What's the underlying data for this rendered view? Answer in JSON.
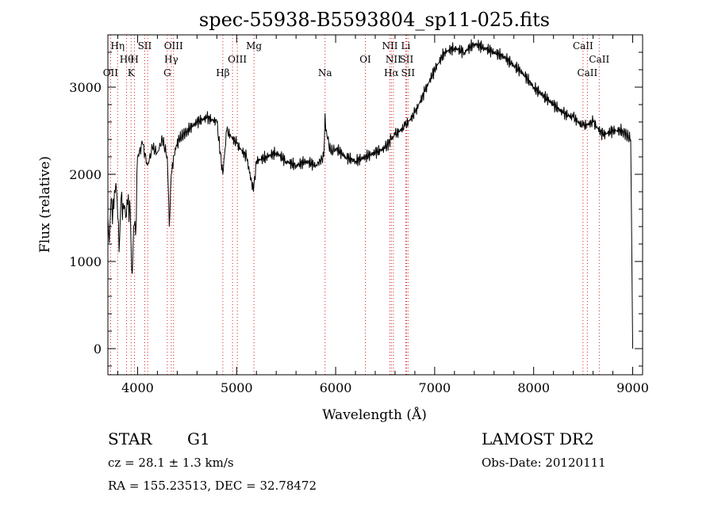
{
  "chart_data": {
    "type": "line",
    "title": "spec-55938-B5593804_sp11-025.fits",
    "xlabel": "Wavelength (Å)",
    "ylabel": "Flux (relative)",
    "xlim": [
      3700,
      9100
    ],
    "ylim": [
      -300,
      3600
    ],
    "xticks": [
      4000,
      5000,
      6000,
      7000,
      8000,
      9000
    ],
    "yticks": [
      0,
      1000,
      2000,
      3000
    ],
    "grid": false,
    "series": [
      {
        "color": "#000000",
        "x": [
          3700,
          3720,
          3740,
          3760,
          3780,
          3800,
          3820,
          3840,
          3860,
          3880,
          3900,
          3920,
          3940,
          3960,
          3980,
          4000,
          4050,
          4100,
          4150,
          4200,
          4250,
          4300,
          4320,
          4340,
          4380,
          4420,
          4500,
          4600,
          4700,
          4800,
          4860,
          4900,
          5000,
          5100,
          5170,
          5200,
          5300,
          5400,
          5500,
          5600,
          5700,
          5800,
          5880,
          5893,
          5900,
          5920,
          5950,
          6000,
          6100,
          6200,
          6300,
          6400,
          6500,
          6560,
          6600,
          6700,
          6800,
          6900,
          7000,
          7100,
          7200,
          7300,
          7400,
          7500,
          7600,
          7700,
          7800,
          7900,
          8000,
          8100,
          8200,
          8300,
          8400,
          8500,
          8600,
          8700,
          8800,
          8900,
          8980,
          9000
        ],
        "y": [
          1500,
          1400,
          1700,
          1600,
          1900,
          1500,
          1300,
          1800,
          1600,
          1500,
          1650,
          1700,
          900,
          1400,
          1300,
          2200,
          2350,
          2100,
          2300,
          2250,
          2400,
          2200,
          1400,
          2000,
          2300,
          2400,
          2500,
          2600,
          2650,
          2600,
          2000,
          2500,
          2350,
          2200,
          1800,
          2150,
          2200,
          2250,
          2150,
          2100,
          2150,
          2100,
          2200,
          2700,
          2500,
          2400,
          2250,
          2300,
          2200,
          2150,
          2200,
          2250,
          2300,
          2400,
          2450,
          2550,
          2700,
          2950,
          3200,
          3400,
          3450,
          3400,
          3500,
          3450,
          3400,
          3350,
          3250,
          3150,
          3000,
          2900,
          2800,
          2700,
          2650,
          2550,
          2600,
          2450,
          2500,
          2500,
          2400,
          0
        ]
      }
    ],
    "lines": [
      {
        "x": 3727,
        "label": "OII",
        "row": 3
      },
      {
        "x": 3798,
        "label": "Hη",
        "row": 1
      },
      {
        "x": 3889,
        "label": "Hθ",
        "row": 2
      },
      {
        "x": 3934,
        "label": "K",
        "row": 3
      },
      {
        "x": 3969,
        "label": "H",
        "row": 2
      },
      {
        "x": 4072,
        "label": "SII",
        "row": 1
      },
      {
        "x": 4102,
        "label": "",
        "row": 0
      },
      {
        "x": 4300,
        "label": "G",
        "row": 3
      },
      {
        "x": 4340,
        "label": "Hγ",
        "row": 2
      },
      {
        "x": 4363,
        "label": "OIII",
        "row": 1
      },
      {
        "x": 4861,
        "label": "Hβ",
        "row": 3
      },
      {
        "x": 4959,
        "label": "",
        "row": 0
      },
      {
        "x": 5007,
        "label": "OIII",
        "row": 2
      },
      {
        "x": 5175,
        "label": "Mg",
        "row": 1
      },
      {
        "x": 5893,
        "label": "Na",
        "row": 3
      },
      {
        "x": 6300,
        "label": "OI",
        "row": 2
      },
      {
        "x": 6548,
        "label": "NII",
        "row": 1
      },
      {
        "x": 6563,
        "label": "Hα",
        "row": 3
      },
      {
        "x": 6583,
        "label": "NII",
        "row": 2
      },
      {
        "x": 6708,
        "label": "Li",
        "row": 1
      },
      {
        "x": 6716,
        "label": "SII",
        "row": 2
      },
      {
        "x": 6731,
        "label": "SII",
        "row": 3
      },
      {
        "x": 8498,
        "label": "CaII",
        "row": 1
      },
      {
        "x": 8542,
        "label": "CaII",
        "row": 3
      },
      {
        "x": 8662,
        "label": "CaII",
        "row": 2
      }
    ]
  },
  "info": {
    "object_class": "STAR",
    "subclass": "G1",
    "survey": "LAMOST DR2",
    "cz": "cz = 28.1 ± 1.3 km/s",
    "obs_date": "Obs-Date: 20120111",
    "coords": "RA = 155.23513, DEC =  32.78472"
  }
}
